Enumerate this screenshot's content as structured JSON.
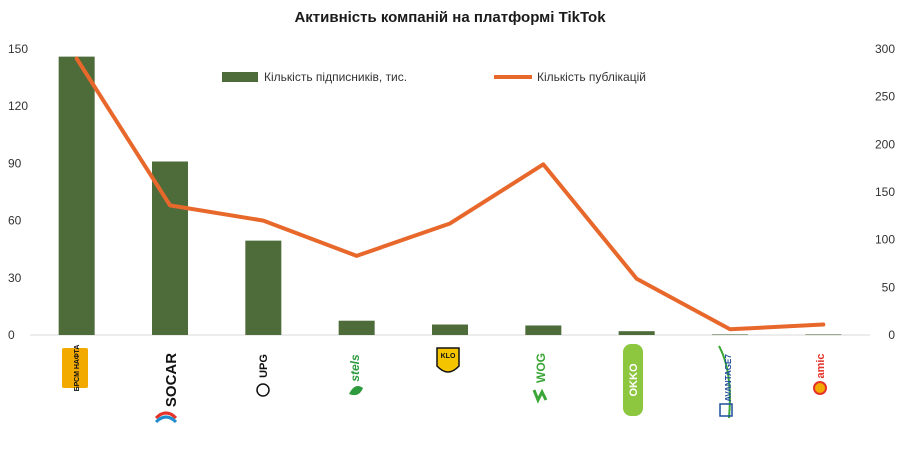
{
  "chart_data": {
    "type": "bar+line",
    "title": "Активність компаній на платформі TikTok",
    "categories": [
      "Brsm Нафта",
      "SOCAR",
      "UPG",
      "Stels",
      "KLO",
      "WOG",
      "OKKO",
      "Avantage7",
      "Amic Energy"
    ],
    "series": [
      {
        "name": "Кількість підписників, тис.",
        "type": "bar",
        "axis": "left",
        "color": "#4e6b3a",
        "values": [
          146,
          91,
          49.5,
          7.5,
          5.5,
          5,
          2,
          0.3,
          0.3
        ]
      },
      {
        "name": "Кількість публікацій",
        "type": "line",
        "axis": "right",
        "color": "#e8682c",
        "values": [
          290,
          136,
          120,
          83,
          117,
          179,
          59,
          6,
          11
        ]
      }
    ],
    "y_left": {
      "min": 0,
      "max": 150,
      "ticks": [
        "0",
        "30",
        "60",
        "90",
        "120",
        "150"
      ]
    },
    "y_right": {
      "min": 0,
      "max": 300,
      "ticks": [
        "0",
        "50",
        "100",
        "150",
        "200",
        "250",
        "300"
      ]
    },
    "legend_position": "top-center",
    "grid": false
  },
  "logos": {
    "brsm": {
      "label": "БРСМ НАФТА",
      "color": "#f2a900",
      "icon": "brsm-logo"
    },
    "socar": {
      "label": "SOCAR",
      "color": "#111111",
      "icon": "socar-flame-logo"
    },
    "upg": {
      "label": "UPG",
      "color": "#111111",
      "icon": "upg-globe-logo"
    },
    "stels": {
      "label": "stels",
      "color": "#2e9a3e",
      "icon": "stels-leaf-logo"
    },
    "klo": {
      "label": "KLO",
      "color": "#f5c400",
      "icon": "klo-shield-logo"
    },
    "wog": {
      "label": "WOG",
      "color": "#3aa635",
      "icon": "wog-logo"
    },
    "okko": {
      "label": "OKKO",
      "color": "#8dc63f",
      "icon": "okko-logo"
    },
    "avantage": {
      "label": "AVANTAGE7",
      "color": "#1f4e9c",
      "icon": "avantage7-logo"
    },
    "amic": {
      "label": "amic",
      "color": "#e5332a",
      "icon": "amic-logo"
    }
  }
}
